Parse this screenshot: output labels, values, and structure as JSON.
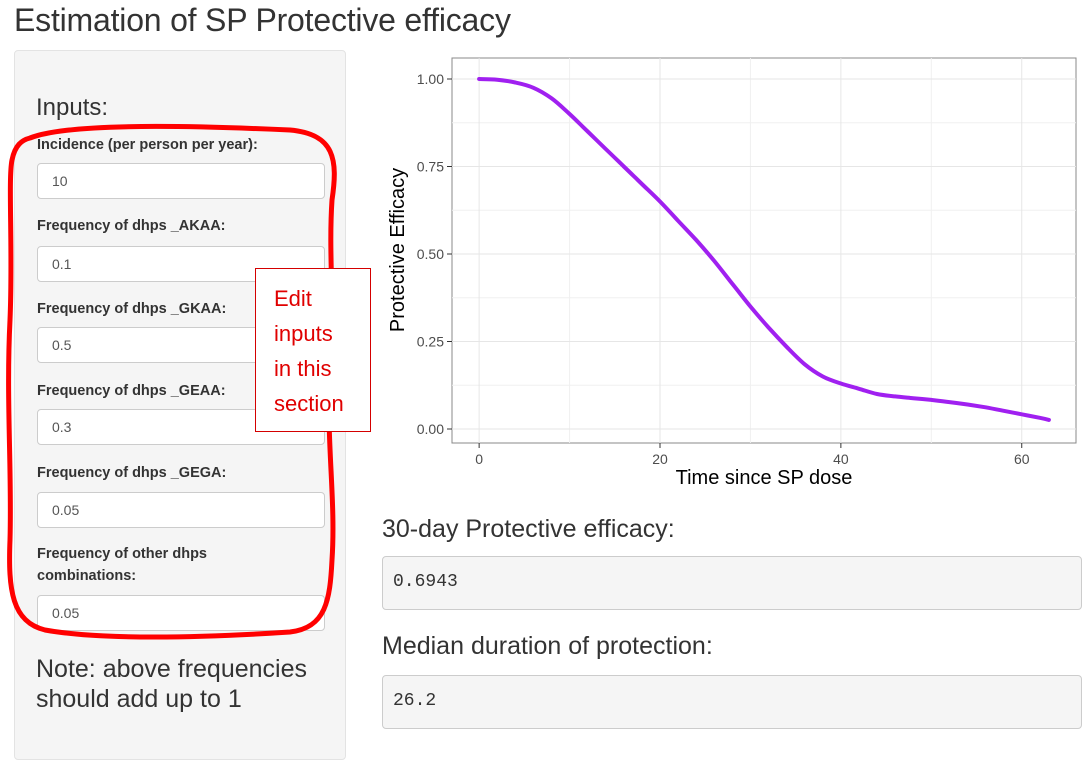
{
  "page": {
    "title": "Estimation of SP Protective efficacy"
  },
  "sidebar": {
    "heading": "Inputs:",
    "fields": [
      {
        "label": "Incidence (per person per year):",
        "value": "10"
      },
      {
        "label": "Frequency of dhps _AKAA:",
        "value": "0.1"
      },
      {
        "label": "Frequency of dhps _GKAA:",
        "value": "0.5"
      },
      {
        "label": "Frequency of dhps _GEAA:",
        "value": "0.3"
      },
      {
        "label": "Frequency of dhps _GEGA:",
        "value": "0.05"
      },
      {
        "label": "Frequency of other dhps combinations:",
        "value": "0.05"
      }
    ],
    "note": "Note: above frequencies should add up to 1"
  },
  "annotation": {
    "callout_text": "Edit inputs in this section",
    "color": "#ff0000"
  },
  "chart_data": {
    "type": "line",
    "xlabel": "Time since SP dose",
    "ylabel": "Protective Efficacy",
    "xlim": [
      -3,
      66
    ],
    "ylim": [
      -0.04,
      1.06
    ],
    "x_ticks": [
      0,
      20,
      40,
      60
    ],
    "y_ticks": [
      0.0,
      0.25,
      0.5,
      0.75,
      1.0
    ],
    "x_tick_labels": [
      "0",
      "20",
      "40",
      "60"
    ],
    "y_tick_labels": [
      "0.00",
      "0.25",
      "0.50",
      "0.75",
      "1.00"
    ],
    "grid": true,
    "line_color": "#a020f0",
    "series": [
      {
        "x": [
          0,
          2,
          4,
          6,
          8,
          10,
          12,
          14,
          16,
          18,
          20,
          22,
          24,
          26,
          28,
          30,
          32,
          34,
          36,
          38,
          40,
          42,
          44,
          46,
          48,
          50,
          52,
          54,
          56,
          58,
          60,
          62,
          63
        ],
        "y": [
          1.0,
          0.998,
          0.99,
          0.975,
          0.945,
          0.9,
          0.85,
          0.8,
          0.75,
          0.7,
          0.65,
          0.595,
          0.54,
          0.48,
          0.415,
          0.35,
          0.29,
          0.235,
          0.185,
          0.15,
          0.13,
          0.115,
          0.1,
          0.093,
          0.088,
          0.083,
          0.077,
          0.07,
          0.062,
          0.052,
          0.042,
          0.032,
          0.026
        ]
      }
    ]
  },
  "outputs": [
    {
      "title": "30-day Protective efficacy:",
      "value": "0.6943"
    },
    {
      "title": "Median duration of protection:",
      "value": "26.2"
    }
  ]
}
